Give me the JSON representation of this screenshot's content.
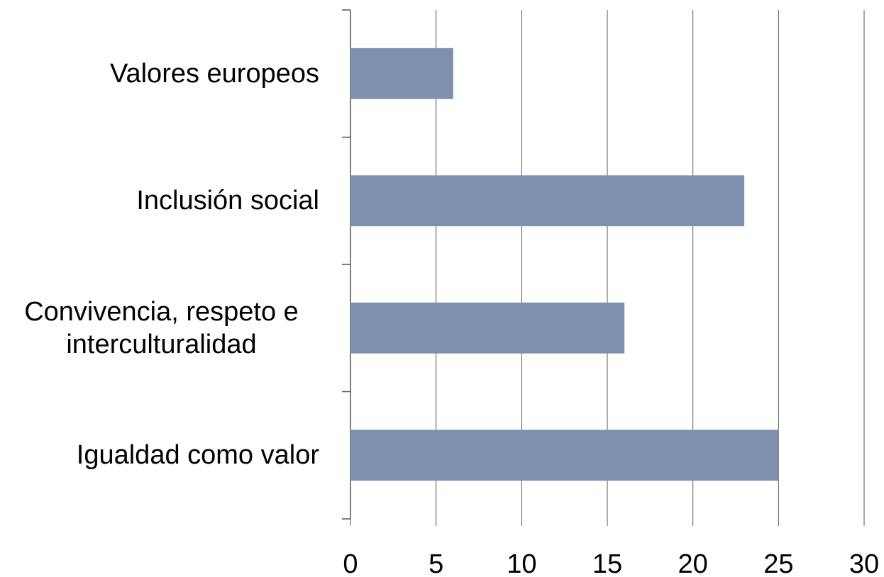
{
  "chart_data": {
    "type": "bar",
    "orientation": "horizontal",
    "categories": [
      "Valores europeos",
      "Inclusión social",
      "Convivencia, respeto e interculturalidad",
      "Igualdad como valor"
    ],
    "values": [
      6,
      23,
      16,
      25
    ],
    "color": "#7f8fae",
    "xlim": [
      0,
      30
    ],
    "xticks": [
      0,
      5,
      10,
      15,
      20,
      25,
      30
    ],
    "grid": true
  }
}
